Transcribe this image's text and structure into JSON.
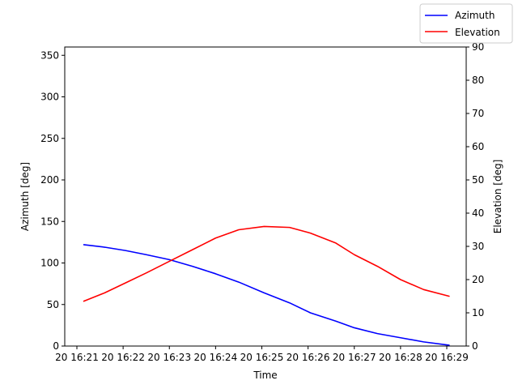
{
  "chart_data": {
    "type": "line",
    "xlabel": "Time",
    "ylabel_left": "Azimuth [deg]",
    "ylabel_right": "Elevation [deg]",
    "ylim_left": [
      0,
      360
    ],
    "ylim_right": [
      0,
      90
    ],
    "yticks_left": [
      "0",
      "50",
      "100",
      "150",
      "200",
      "250",
      "300",
      "350"
    ],
    "yticks_right": [
      "0",
      "10",
      "20",
      "30",
      "40",
      "50",
      "60",
      "70",
      "80",
      "90"
    ],
    "xticks": [
      "20 16:21",
      "20 16:22",
      "20 16:23",
      "20 16:24",
      "20 16:25",
      "20 16:26",
      "20 16:27",
      "20 16:28",
      "20 16:29"
    ],
    "x_minutes": [
      0.15,
      0.6,
      1.05,
      1.5,
      2.0,
      2.5,
      3.0,
      3.5,
      4.05,
      4.6,
      5.05,
      5.6,
      6.0,
      6.5,
      7.0,
      7.5,
      8.05
    ],
    "legend_position": "top-right",
    "series": [
      {
        "name": "Azimuth",
        "color": "#0000ff",
        "axis": "left",
        "values": [
          122,
          119,
          115,
          110,
          104,
          96,
          87,
          77,
          64,
          52,
          40,
          30,
          22,
          15,
          10,
          5,
          1
        ]
      },
      {
        "name": "Elevation",
        "color": "#ff0000",
        "axis": "right",
        "values": [
          13.5,
          16.0,
          19.0,
          22.0,
          25.5,
          29.0,
          32.5,
          35.0,
          36.0,
          35.7,
          34.0,
          31.0,
          27.5,
          24.0,
          20.0,
          17.0,
          15.0
        ]
      }
    ]
  }
}
